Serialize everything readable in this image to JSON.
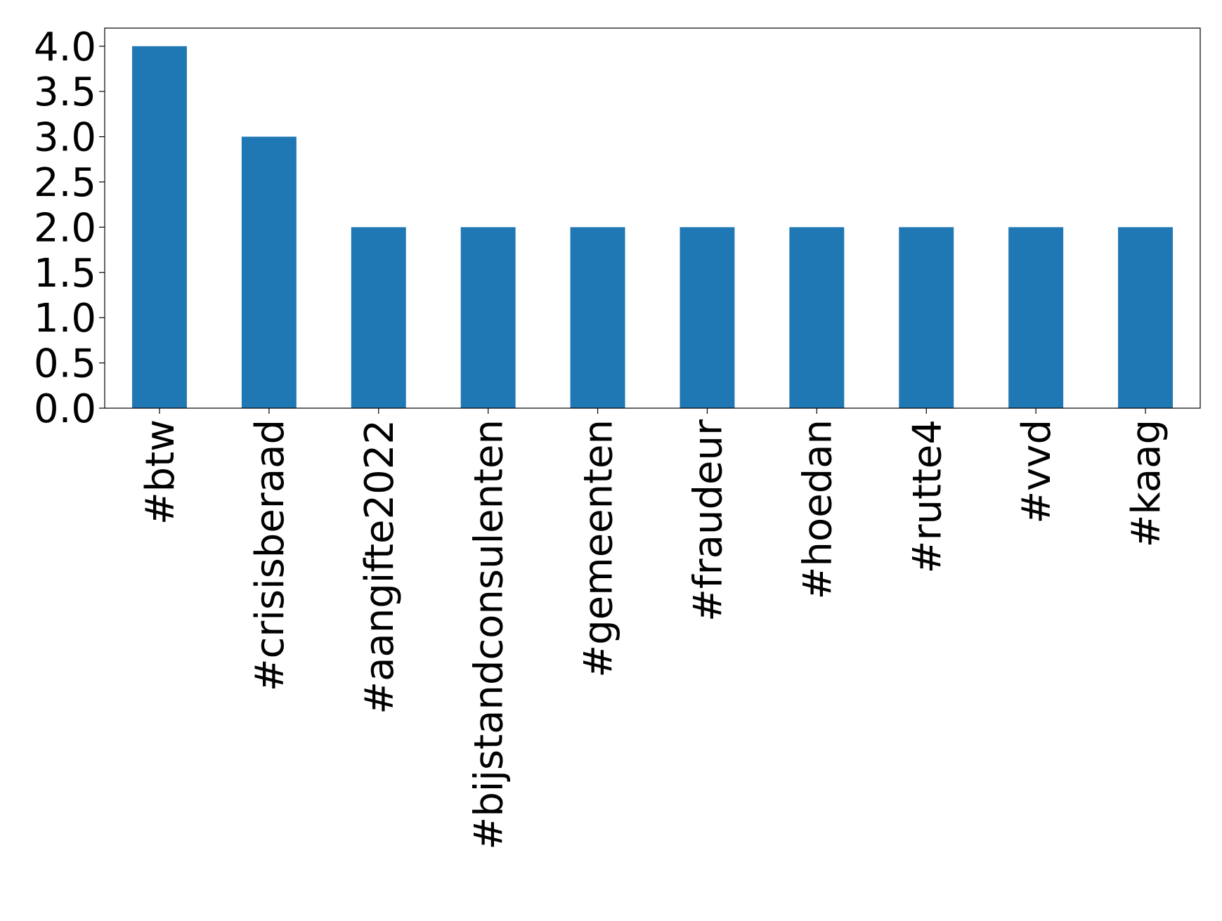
{
  "chart_data": {
    "type": "bar",
    "categories": [
      "#btw",
      "#crisisberaad",
      "#aangifte2022",
      "#bijstandconsulenten",
      "#gemeenten",
      "#fraudeur",
      "#hoedan",
      "#rutte4",
      "#vvd",
      "#kaag"
    ],
    "values": [
      4,
      3,
      2,
      2,
      2,
      2,
      2,
      2,
      2,
      2
    ],
    "color": "#1f77b4",
    "ylim": [
      0,
      4.2
    ],
    "yticks": [
      {
        "value": 0,
        "label": "0.0"
      },
      {
        "value": 0.5,
        "label": "0.5"
      },
      {
        "value": 1,
        "label": "1.0"
      },
      {
        "value": 1.5,
        "label": "1.5"
      },
      {
        "value": 2,
        "label": "2.0"
      },
      {
        "value": 2.5,
        "label": "2.5"
      },
      {
        "value": 3,
        "label": "3.0"
      },
      {
        "value": 3.5,
        "label": "3.5"
      },
      {
        "value": 4,
        "label": "4.0"
      }
    ],
    "grid": false
  }
}
